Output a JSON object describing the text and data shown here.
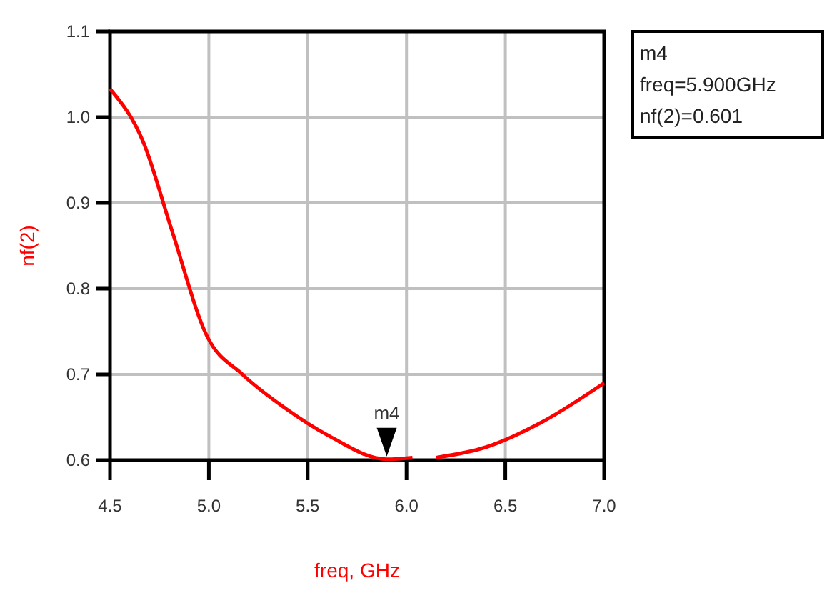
{
  "chart_data": {
    "type": "line",
    "xlabel": "freq, GHz",
    "ylabel": "nf(2)",
    "series": [
      {
        "color": "#ff0000",
        "x": [
          4.5,
          4.67,
          4.81,
          4.99,
          5.17,
          5.39,
          5.61,
          5.9,
          6.03
        ],
        "values": [
          1.033,
          0.97,
          0.87,
          0.745,
          0.7,
          0.66,
          0.628,
          0.601,
          0.603
        ]
      },
      {
        "color": "#ff0000",
        "x": [
          6.15,
          6.4,
          6.69,
          7.0
        ],
        "values": [
          0.603,
          0.615,
          0.645,
          0.69
        ]
      }
    ],
    "xlim": [
      4.5,
      7.0
    ],
    "xticks": [
      4.5,
      {
        "value": 5,
        "label": "5.0"
      },
      5.5,
      {
        "value": 6,
        "label": "6.0"
      },
      6.5,
      {
        "value": 7,
        "label": "7.0"
      }
    ],
    "ylim": [
      0.6,
      1.1
    ],
    "yticks": [
      0.6,
      0.7,
      0.8,
      0.9,
      {
        "value": 1,
        "label": "1.0"
      },
      1.1
    ],
    "grid": true,
    "annotations": [
      {
        "text": "m4",
        "x": 5.9,
        "y": 0.601
      },
      "m4",
      "freq=5.900GHz",
      "nf(2)=0.601"
    ]
  }
}
